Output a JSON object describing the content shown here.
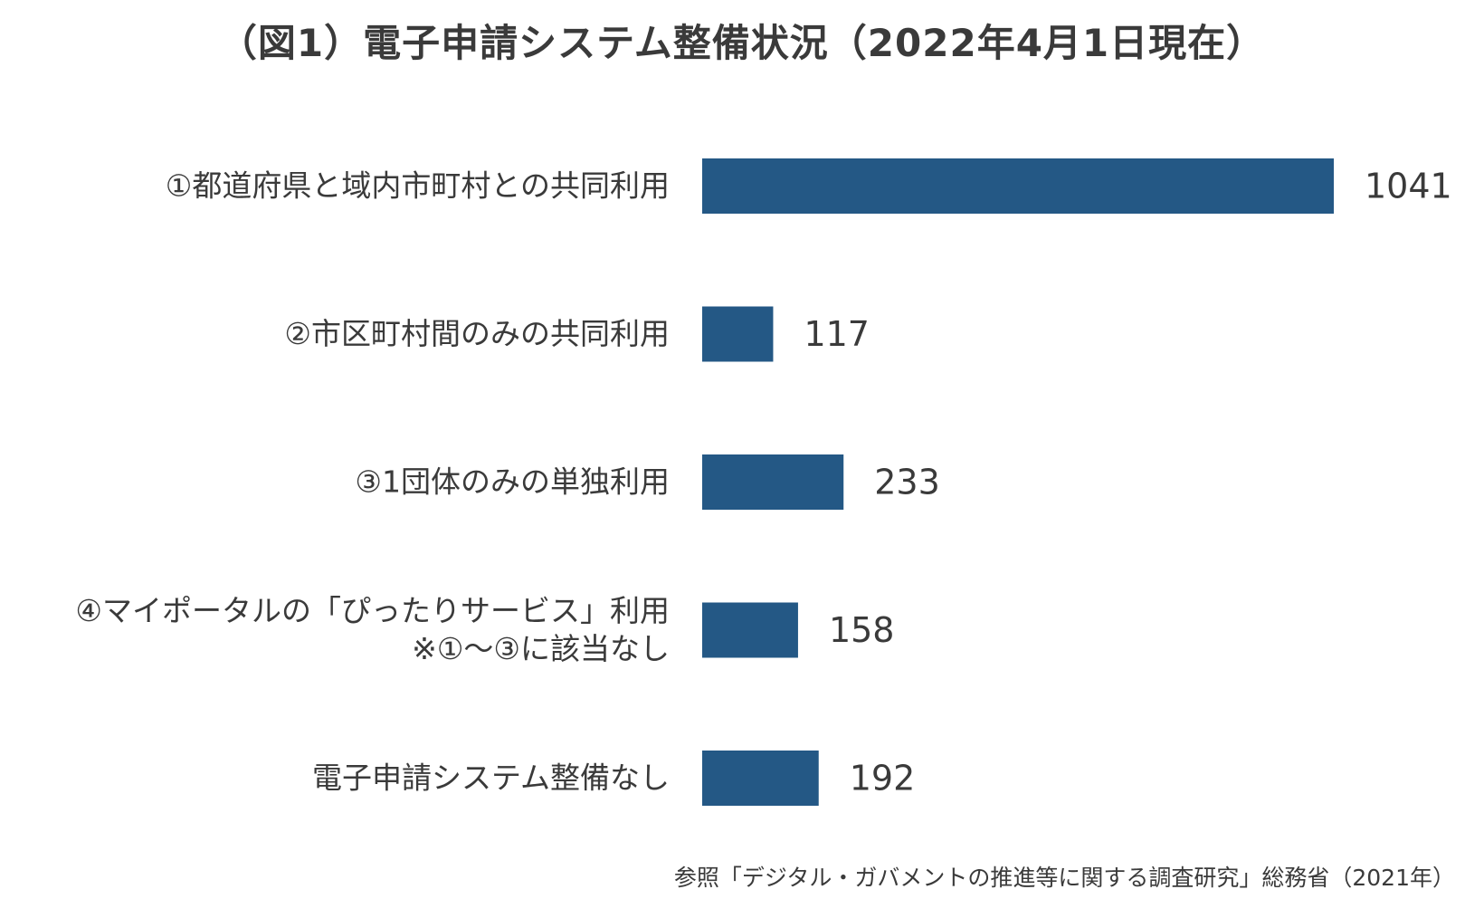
{
  "chart_data": {
    "type": "bar",
    "orientation": "horizontal",
    "title": "（図1）電子申請システム整備状況（2022年4月1日現在）",
    "categories": [
      [
        "①都道府県と域内市町村との共同利用"
      ],
      [
        "②市区町村間のみの共同利用"
      ],
      [
        "③1団体のみの単独利用"
      ],
      [
        "④マイポータルの「ぴったりサービス」利用",
        "※①～③に該当なし"
      ],
      [
        "電子申請システム整備なし"
      ]
    ],
    "values": [
      1041,
      117,
      233,
      158,
      192
    ],
    "bar_color": "#245885",
    "xlim": [
      0,
      1041
    ],
    "grid": false,
    "legend": "none"
  },
  "source": "参照「デジタル・ガバメントの推進等に関する調査研究」総務省（2021年）"
}
